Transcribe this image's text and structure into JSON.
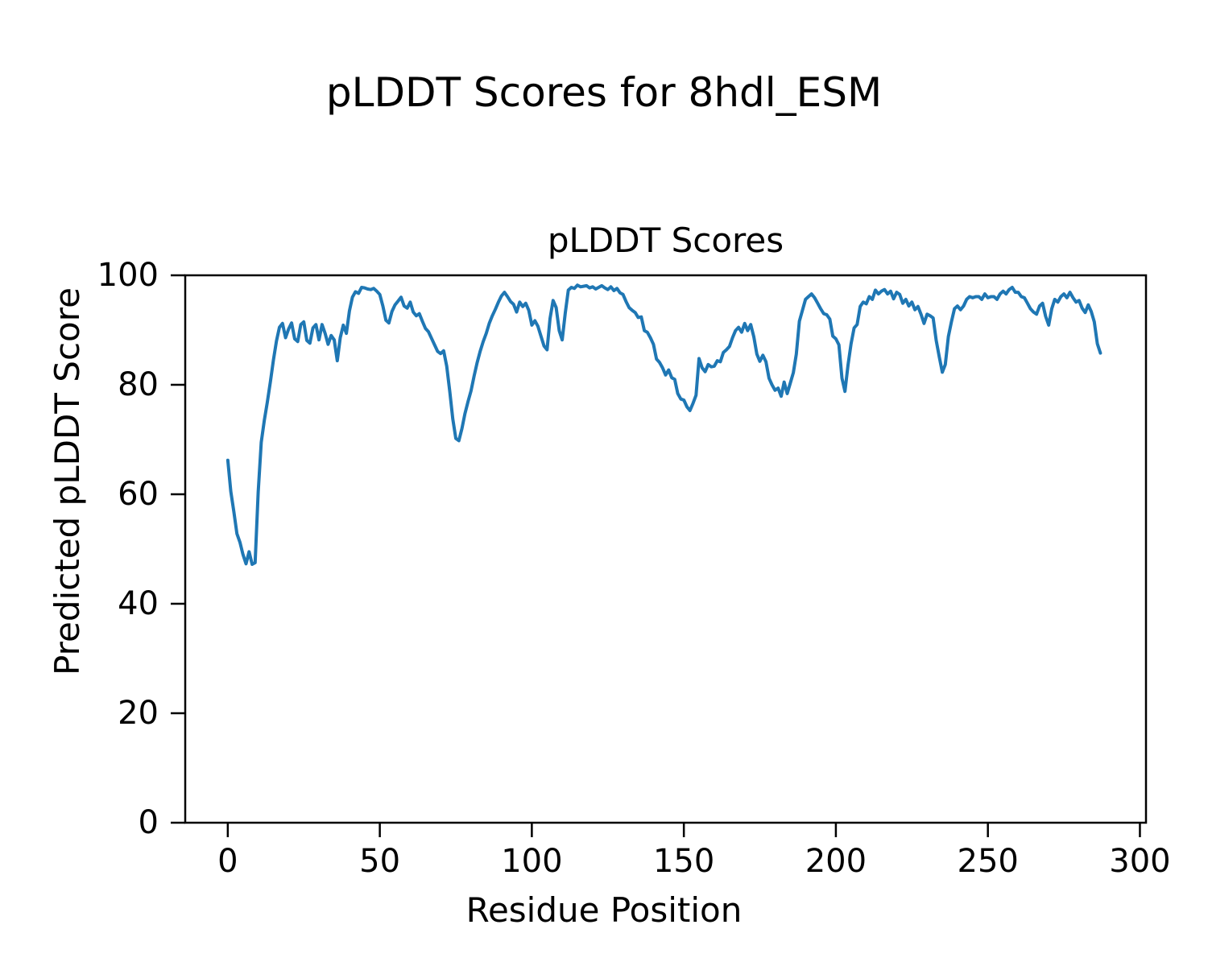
{
  "figure": {
    "suptitle": "pLDDT Scores for 8hdl_ESM",
    "background_color": "#ffffff",
    "text_color": "#000000"
  },
  "chart_data": {
    "type": "line",
    "title": "pLDDT Scores",
    "xlabel": "Residue Position",
    "ylabel": "Predicted pLDDT Score",
    "line_color": "#1f77b4",
    "line_width": 4,
    "xlim": [
      -14,
      302
    ],
    "ylim": [
      0,
      100
    ],
    "xticks": [
      0,
      50,
      100,
      150,
      200,
      250,
      300
    ],
    "yticks": [
      0,
      20,
      40,
      60,
      80,
      100
    ],
    "x_start": 0,
    "series_name": "pLDDT",
    "values": [
      66.2,
      60.5,
      56.8,
      52.8,
      51.2,
      49.0,
      47.3,
      49.5,
      47.2,
      47.5,
      60.4,
      69.5,
      73.5,
      76.8,
      80.5,
      84.5,
      88.0,
      90.5,
      91.2,
      88.6,
      90.2,
      91.3,
      88.4,
      87.9,
      91.0,
      91.5,
      88.1,
      87.6,
      90.4,
      91.0,
      88.2,
      91.0,
      89.4,
      87.4,
      89.0,
      88.2,
      84.4,
      88.6,
      90.9,
      89.4,
      93.5,
      96.0,
      97.0,
      96.7,
      97.8,
      97.7,
      97.5,
      97.4,
      97.6,
      97.1,
      96.5,
      94.4,
      91.8,
      91.3,
      93.4,
      94.6,
      95.3,
      96.0,
      94.4,
      94.0,
      95.1,
      93.3,
      92.6,
      93.0,
      91.6,
      90.3,
      89.7,
      88.5,
      87.3,
      86.1,
      85.7,
      86.2,
      83.4,
      78.8,
      73.8,
      70.2,
      69.8,
      72.0,
      74.7,
      76.9,
      78.9,
      81.6,
      84.0,
      86.1,
      87.9,
      89.4,
      91.2,
      92.6,
      93.8,
      95.1,
      96.2,
      96.9,
      96.1,
      95.2,
      94.7,
      93.3,
      95.1,
      94.3,
      94.9,
      93.6,
      90.9,
      91.7,
      90.7,
      88.9,
      87.1,
      86.4,
      92.1,
      95.4,
      94.1,
      89.9,
      88.2,
      93.1,
      97.3,
      97.8,
      97.6,
      98.2,
      97.9,
      98.0,
      98.1,
      97.7,
      97.9,
      97.5,
      97.8,
      98.1,
      97.7,
      97.4,
      97.9,
      97.2,
      97.6,
      96.8,
      96.5,
      95.2,
      94.1,
      93.6,
      93.2,
      92.3,
      92.4,
      89.9,
      89.6,
      88.6,
      87.4,
      84.7,
      84.1,
      83.1,
      81.8,
      82.7,
      81.3,
      81.0,
      78.4,
      77.4,
      77.2,
      76.0,
      75.3,
      76.6,
      78.1,
      84.8,
      83.1,
      82.4,
      83.7,
      83.3,
      83.4,
      84.4,
      84.2,
      85.9,
      86.4,
      87.0,
      88.6,
      89.9,
      90.5,
      89.6,
      91.2,
      89.9,
      91.0,
      88.8,
      85.6,
      84.3,
      85.4,
      84.2,
      81.2,
      80.0,
      79.0,
      79.4,
      77.9,
      80.5,
      78.4,
      80.3,
      82.2,
      85.6,
      91.6,
      93.6,
      95.6,
      96.1,
      96.6,
      95.9,
      94.9,
      93.9,
      93.0,
      92.8,
      92.0,
      88.9,
      88.4,
      87.3,
      81.2,
      78.8,
      83.6,
      87.5,
      90.4,
      91.0,
      94.3,
      95.1,
      94.8,
      96.1,
      95.6,
      97.3,
      96.6,
      97.1,
      97.4,
      96.6,
      97.1,
      95.7,
      96.9,
      96.5,
      94.9,
      95.6,
      94.4,
      95.1,
      93.7,
      94.3,
      92.9,
      91.2,
      92.9,
      92.6,
      92.2,
      88.1,
      85.1,
      82.3,
      83.7,
      88.8,
      91.5,
      93.9,
      94.4,
      93.7,
      94.4,
      95.6,
      96.1,
      95.9,
      96.1,
      96.1,
      95.6,
      96.6,
      95.9,
      96.1,
      96.1,
      95.6,
      96.6,
      97.1,
      96.6,
      97.4,
      97.8,
      96.9,
      96.9,
      96.1,
      95.9,
      94.9,
      93.9,
      93.3,
      92.9,
      94.4,
      94.9,
      92.5,
      90.9,
      93.9,
      95.6,
      95.1,
      96.1,
      96.6,
      95.9,
      96.9,
      95.9,
      95.1,
      95.4,
      94.0,
      93.2,
      94.6,
      93.4,
      91.5,
      87.5,
      85.8
    ]
  }
}
